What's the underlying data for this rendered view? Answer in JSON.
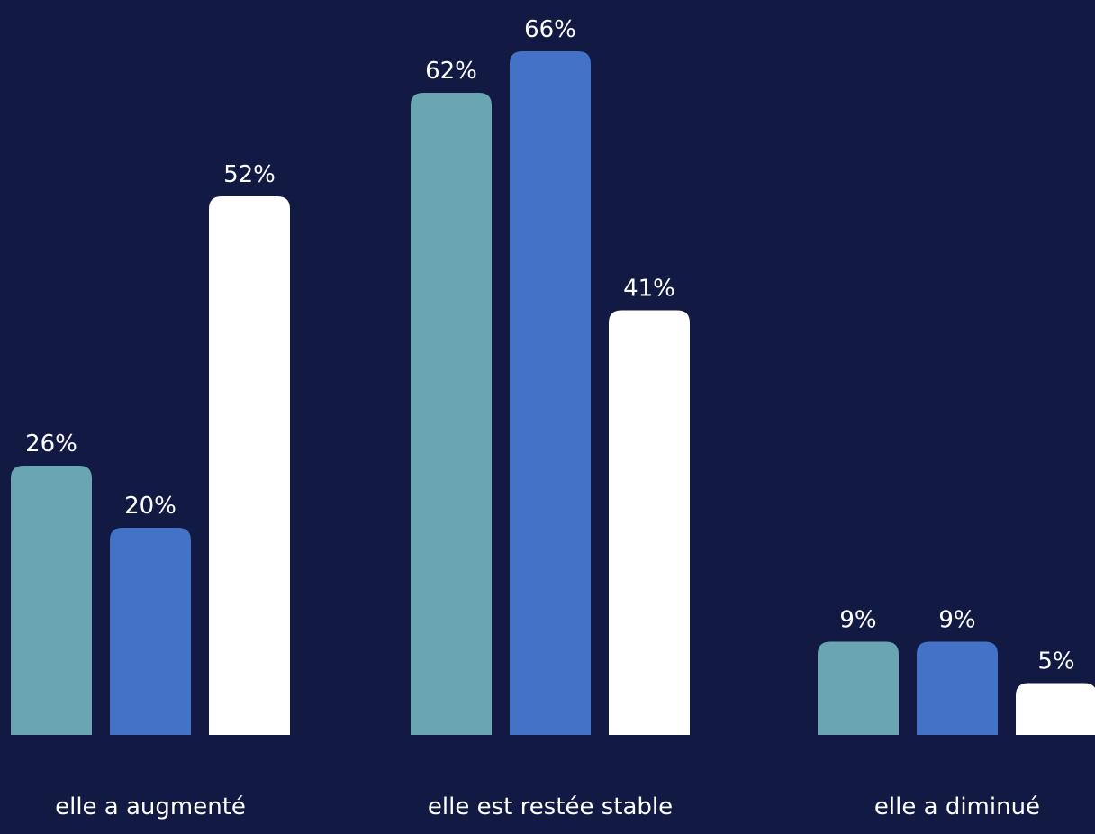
{
  "colors": {
    "background": "#121a43",
    "text": "#ffffff"
  },
  "chart_data": {
    "type": "bar",
    "title": "",
    "xlabel": "",
    "ylabel": "",
    "ylim": [
      0,
      70
    ],
    "grid": false,
    "legend": "none",
    "value_suffix": "%",
    "categories": [
      "elle a augmenté",
      "elle est restée stable",
      "elle a diminué"
    ],
    "series": [
      {
        "values": [
          26,
          62,
          9
        ],
        "color": "#6aa5b3"
      },
      {
        "values": [
          20,
          66,
          9
        ],
        "color": "#4472c7"
      },
      {
        "values": [
          52,
          41,
          5
        ],
        "color": "#ffffff"
      }
    ]
  }
}
